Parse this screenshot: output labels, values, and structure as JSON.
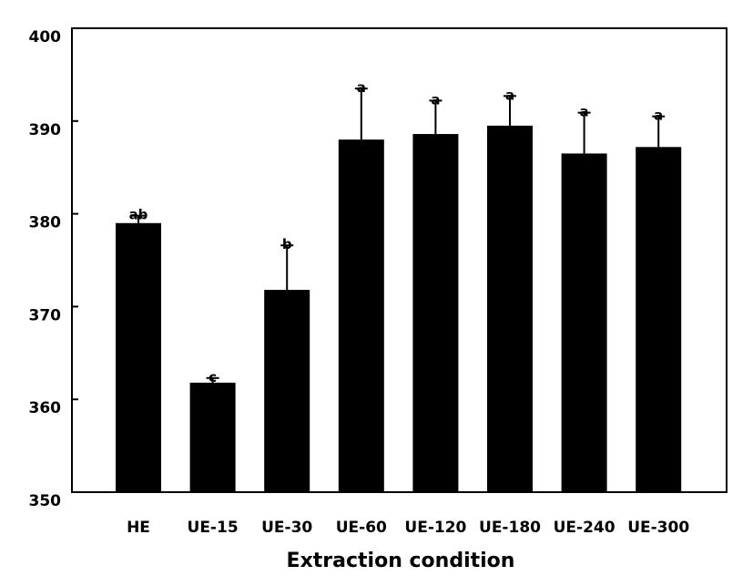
{
  "chart_data": {
    "type": "bar",
    "title": "",
    "xlabel": "Extraction condition",
    "ylabel": "",
    "categories": [
      "HE",
      "UE-15",
      "UE-30",
      "UE-60",
      "UE-120",
      "UE-180",
      "UE-240",
      "UE-300"
    ],
    "values": [
      379.0,
      361.8,
      371.8,
      388.0,
      388.6,
      389.5,
      386.5,
      387.2
    ],
    "errors": [
      0.8,
      0.5,
      4.8,
      5.5,
      3.6,
      3.2,
      4.4,
      3.3
    ],
    "significance": [
      "ab",
      "c",
      "b",
      "a",
      "a",
      "a",
      "a",
      "a"
    ],
    "ylim": [
      350,
      400
    ],
    "yticks": [
      350,
      360,
      370,
      380,
      390,
      400
    ],
    "grid": false,
    "legend": "none",
    "bar_color": "#000000"
  }
}
